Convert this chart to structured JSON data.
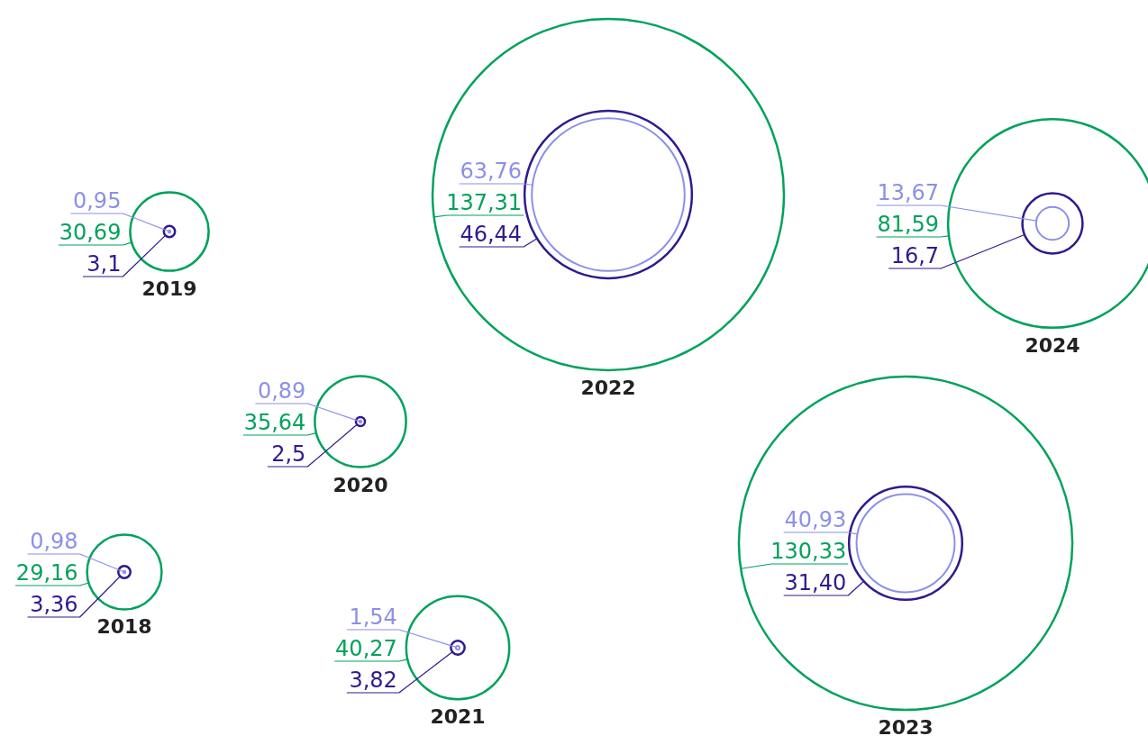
{
  "chart_data": {
    "type": "other",
    "categories": [
      "2018",
      "2019",
      "2020",
      "2021",
      "2022",
      "2023",
      "2024"
    ],
    "data_labels": true,
    "series": [
      {
        "color": "#8b90e8",
        "values": [
          0.98,
          0.95,
          0.89,
          1.54,
          63.76,
          40.93,
          13.67
        ],
        "value_labels": [
          "0,98",
          "0,95",
          "0,89",
          "1,54",
          "63,76",
          "40,93",
          "13,67"
        ]
      },
      {
        "color": "#00a25c",
        "values": [
          29.16,
          30.69,
          35.64,
          40.27,
          137.31,
          130.33,
          81.59
        ],
        "value_labels": [
          "29,16",
          "30,69",
          "35,64",
          "40,27",
          "137,31",
          "130,33",
          "81,59"
        ]
      },
      {
        "color": "#2f1a8e",
        "values": [
          3.36,
          3.1,
          2.5,
          3.82,
          46.44,
          31.4,
          16.7
        ],
        "value_labels": [
          "3,36",
          "3,1",
          "2,5",
          "3,82",
          "46,44",
          "31,40",
          "16,7"
        ]
      }
    ]
  }
}
